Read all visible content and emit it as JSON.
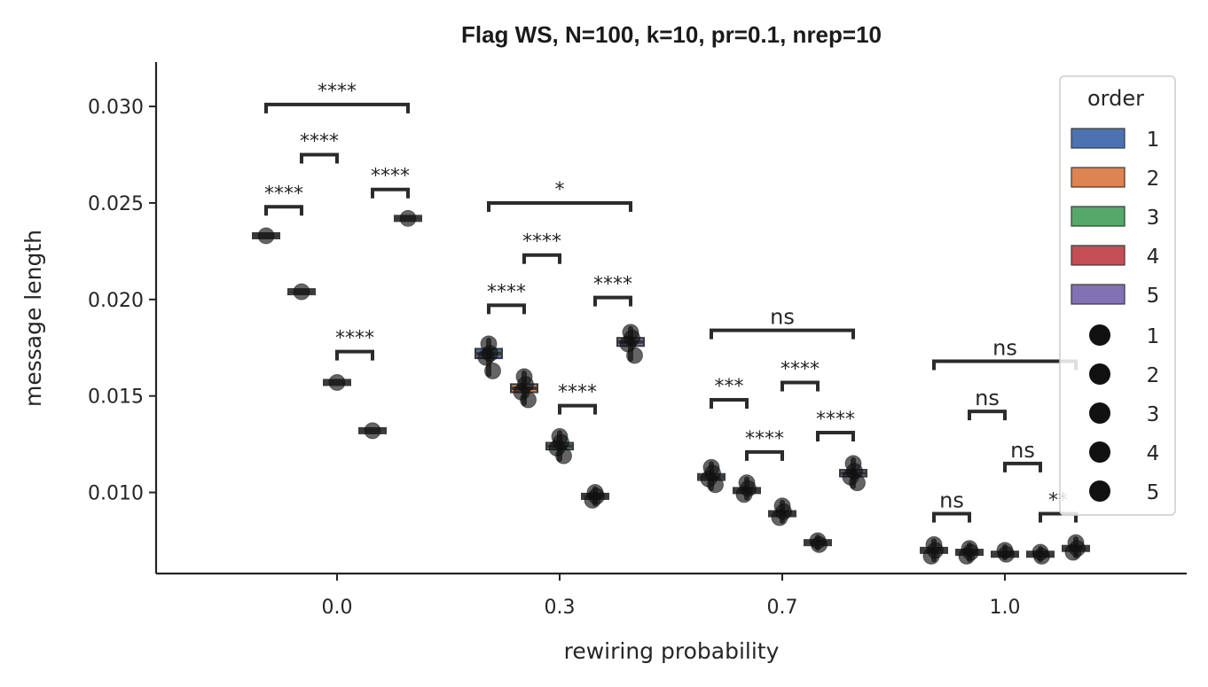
{
  "chart_data": {
    "type": "box",
    "title": "Flag WS, N=100, k=10, pr=0.1, nrep=10",
    "xlabel": "rewiring probability",
    "ylabel": "message length",
    "categories": [
      "0.0",
      "0.3",
      "0.7",
      "1.0"
    ],
    "ylim": [
      0.0058,
      0.0323
    ],
    "yticks": [
      "0.010",
      "0.015",
      "0.020",
      "0.025",
      "0.030"
    ],
    "ytick_values": [
      0.01,
      0.015,
      0.02,
      0.025,
      0.03
    ],
    "series": [
      {
        "name": "1",
        "color": "#4c72b0",
        "medians": [
          0.0233,
          0.0172,
          0.0108,
          0.007
        ]
      },
      {
        "name": "2",
        "color": "#dd8452",
        "medians": [
          0.0204,
          0.0154,
          0.0101,
          0.0069
        ]
      },
      {
        "name": "3",
        "color": "#55a868",
        "medians": [
          0.0157,
          0.0124,
          0.0089,
          0.0068
        ]
      },
      {
        "name": "4",
        "color": "#c44e52",
        "medians": [
          0.0132,
          0.0098,
          0.0074,
          0.0068
        ]
      },
      {
        "name": "5",
        "color": "#8172b3",
        "medians": [
          0.0242,
          0.0178,
          0.011,
          0.0071
        ]
      }
    ],
    "points": [
      [
        [
          0.0233
        ],
        [
          0.0204
        ],
        [
          0.0157
        ],
        [
          0.0132
        ],
        [
          0.0242
        ]
      ],
      [
        [
          0.0177,
          0.0172,
          0.017,
          0.0163
        ],
        [
          0.016,
          0.0156,
          0.0152,
          0.0148
        ],
        [
          0.0129,
          0.0126,
          0.0123,
          0.0119
        ],
        [
          0.01,
          0.0098,
          0.0096
        ],
        [
          0.0183,
          0.018,
          0.0177,
          0.0171
        ]
      ],
      [
        [
          0.0113,
          0.011,
          0.0107,
          0.0104
        ],
        [
          0.0105,
          0.0102,
          0.0099
        ],
        [
          0.0093,
          0.009,
          0.0087
        ],
        [
          0.0075,
          0.0073
        ],
        [
          0.0115,
          0.0111,
          0.0108,
          0.0105
        ]
      ],
      [
        [
          0.0073,
          0.007,
          0.0067
        ],
        [
          0.0071,
          0.0069,
          0.0067
        ],
        [
          0.007,
          0.0068
        ],
        [
          0.0069,
          0.0067
        ],
        [
          0.0074,
          0.0071,
          0.0069
        ]
      ]
    ],
    "annotations": [
      {
        "group": 0,
        "from": 0,
        "to": 1,
        "y": 0.0248,
        "label": "****"
      },
      {
        "group": 0,
        "from": 1,
        "to": 2,
        "y": 0.0275,
        "label": "****"
      },
      {
        "group": 0,
        "from": 3,
        "to": 4,
        "y": 0.0257,
        "label": "****"
      },
      {
        "group": 0,
        "from": 0,
        "to": 4,
        "y": 0.0301,
        "label": "****"
      },
      {
        "group": 0,
        "from": 2,
        "to": 3,
        "y": 0.0173,
        "label": "****"
      },
      {
        "group": 1,
        "from": 0,
        "to": 1,
        "y": 0.0197,
        "label": "****"
      },
      {
        "group": 1,
        "from": 1,
        "to": 2,
        "y": 0.0223,
        "label": "****"
      },
      {
        "group": 1,
        "from": 0,
        "to": 4,
        "y": 0.025,
        "label": "*"
      },
      {
        "group": 1,
        "from": 3,
        "to": 4,
        "y": 0.0201,
        "label": "****"
      },
      {
        "group": 1,
        "from": 2,
        "to": 3,
        "y": 0.0145,
        "label": "****"
      },
      {
        "group": 2,
        "from": 0,
        "to": 1,
        "y": 0.0148,
        "label": "***"
      },
      {
        "group": 2,
        "from": 1,
        "to": 2,
        "y": 0.0121,
        "label": "****"
      },
      {
        "group": 2,
        "from": 2,
        "to": 3,
        "y": 0.0157,
        "label": "****"
      },
      {
        "group": 2,
        "from": 3,
        "to": 4,
        "y": 0.0131,
        "label": "****"
      },
      {
        "group": 2,
        "from": 0,
        "to": 4,
        "y": 0.0184,
        "label": "ns"
      },
      {
        "group": 3,
        "from": 0,
        "to": 4,
        "y": 0.0168,
        "label": "ns"
      },
      {
        "group": 3,
        "from": 1,
        "to": 2,
        "y": 0.0142,
        "label": "ns"
      },
      {
        "group": 3,
        "from": 2,
        "to": 3,
        "y": 0.0115,
        "label": "ns"
      },
      {
        "group": 3,
        "from": 0,
        "to": 1,
        "y": 0.0089,
        "label": "ns"
      },
      {
        "group": 3,
        "from": 3,
        "to": 4,
        "y": 0.0089,
        "label": "**"
      }
    ],
    "legend": {
      "title": "order",
      "position": "upper right",
      "patch_labels": [
        "1",
        "2",
        "3",
        "4",
        "5"
      ],
      "marker_labels": [
        "1",
        "2",
        "3",
        "4",
        "5"
      ]
    },
    "grid": false
  }
}
